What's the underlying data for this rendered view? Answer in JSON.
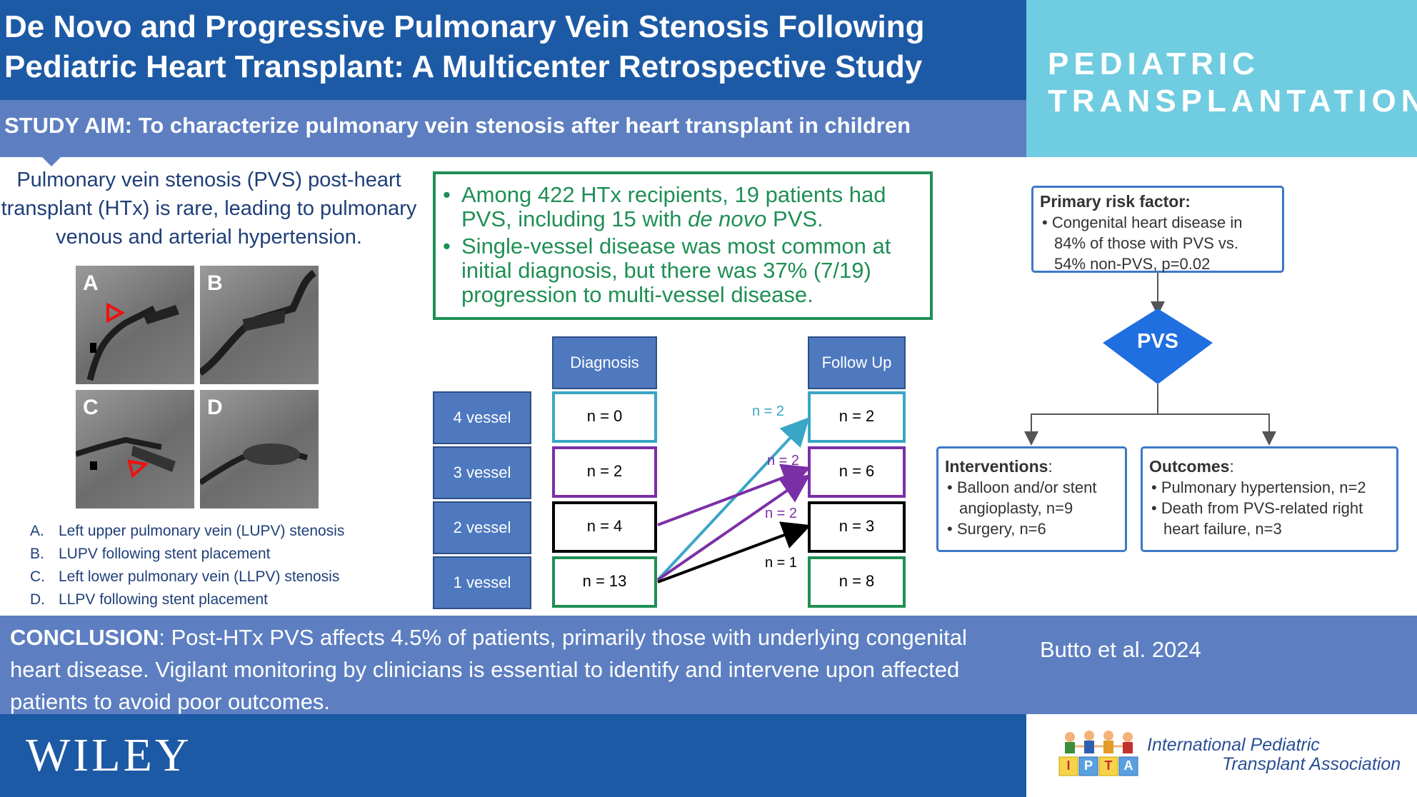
{
  "header": {
    "title": "De Novo and Progressive Pulmonary Vein Stenosis Following\nPediatric Heart Transplant: A Multicenter Retrospective Study",
    "study_aim": "STUDY AIM: To characterize pulmonary vein stenosis after heart transplant in children"
  },
  "journal": {
    "name": "PEDIATRIC\nTRANSPLANTATION"
  },
  "intro": "Pulmonary vein stenosis (PVS) post-heart transplant (HTx) is rare, leading to pulmonary venous and arterial hypertension.",
  "image_panels": {
    "labels": [
      "A",
      "B",
      "C",
      "D"
    ],
    "legend": [
      {
        "key": "A.",
        "text": "Left upper pulmonary vein (LUPV) stenosis"
      },
      {
        "key": "B.",
        "text": "LUPV following stent placement"
      },
      {
        "key": "C.",
        "text": "Left lower pulmonary vein (LLPV) stenosis"
      },
      {
        "key": "D.",
        "text": "LLPV following stent placement"
      }
    ]
  },
  "findings": {
    "bullet1_pre": "Among 422 HTx recipients, 19 patients had PVS, including 15 with ",
    "bullet1_em": "de novo",
    "bullet1_post": " PVS.",
    "bullet2": "Single-vessel disease was most common at initial diagnosis, but there was 37% (7/19) progression to multi-vessel disease."
  },
  "progression_table": {
    "col_diagnosis": "Diagnosis",
    "col_followup": "Follow Up",
    "rows": [
      {
        "label": "4 vessel",
        "diagnosis": "n = 0",
        "followup": "n = 2"
      },
      {
        "label": "3 vessel",
        "diagnosis": "n = 2",
        "followup": "n = 6"
      },
      {
        "label": "2 vessel",
        "diagnosis": "n = 4",
        "followup": "n = 3"
      },
      {
        "label": "1 vessel",
        "diagnosis": "n = 13",
        "followup": "n = 8"
      }
    ],
    "flows": [
      {
        "from": "1 vessel",
        "to": "4 vessel",
        "label": "n = 2",
        "color": "#3aa6c6"
      },
      {
        "from": "2 vessel",
        "to": "3 vessel",
        "label": "n = 2",
        "color": "#7b2fa6"
      },
      {
        "from": "1 vessel",
        "to": "3 vessel",
        "label": "n = 2",
        "color": "#7b2fa6"
      },
      {
        "from": "1 vessel",
        "to": "2 vessel",
        "label": "n = 1",
        "color": "#000000"
      }
    ],
    "row_colors": {
      "4 vessel": "#3aa6c6",
      "3 vessel": "#7b2fa6",
      "2 vessel": "#000000",
      "1 vessel": "#1f8f55"
    }
  },
  "flowchart": {
    "risk_title": "Primary risk factor:",
    "risk_lines": [
      "• Congenital heart disease in",
      "84% of those with PVS vs.",
      "54% non-PVS, p=0.02"
    ],
    "center": "PVS",
    "interventions_title": "Interventions",
    "interventions_lines": [
      "• Balloon and/or stent",
      "angioplasty, n=9",
      "• Surgery, n=6"
    ],
    "outcomes_title": "Outcomes",
    "outcomes_lines": [
      "• Pulmonary hypertension, n=2",
      "• Death from PVS-related right",
      "heart failure, n=3"
    ]
  },
  "conclusion": {
    "label": "CONCLUSION",
    "text": ": Post-HTx PVS affects 4.5% of patients, primarily those with underlying congenital heart disease. Vigilant monitoring by clinicians is essential to identify and intervene upon affected patients to avoid poor outcomes."
  },
  "citation": "Butto et al. 2024",
  "footer": {
    "publisher": "WILEY",
    "association": "International Pediatric\nTransplant Association",
    "logo_letters": [
      "I",
      "P",
      "T",
      "A"
    ]
  },
  "colors": {
    "primary": "#1d5aa6",
    "secondary": "#5d7fc1",
    "journal": "#70cce0",
    "green": "#1f8f55",
    "flow_blue": "#3d78c8",
    "diamond": "#1f6fe0"
  }
}
